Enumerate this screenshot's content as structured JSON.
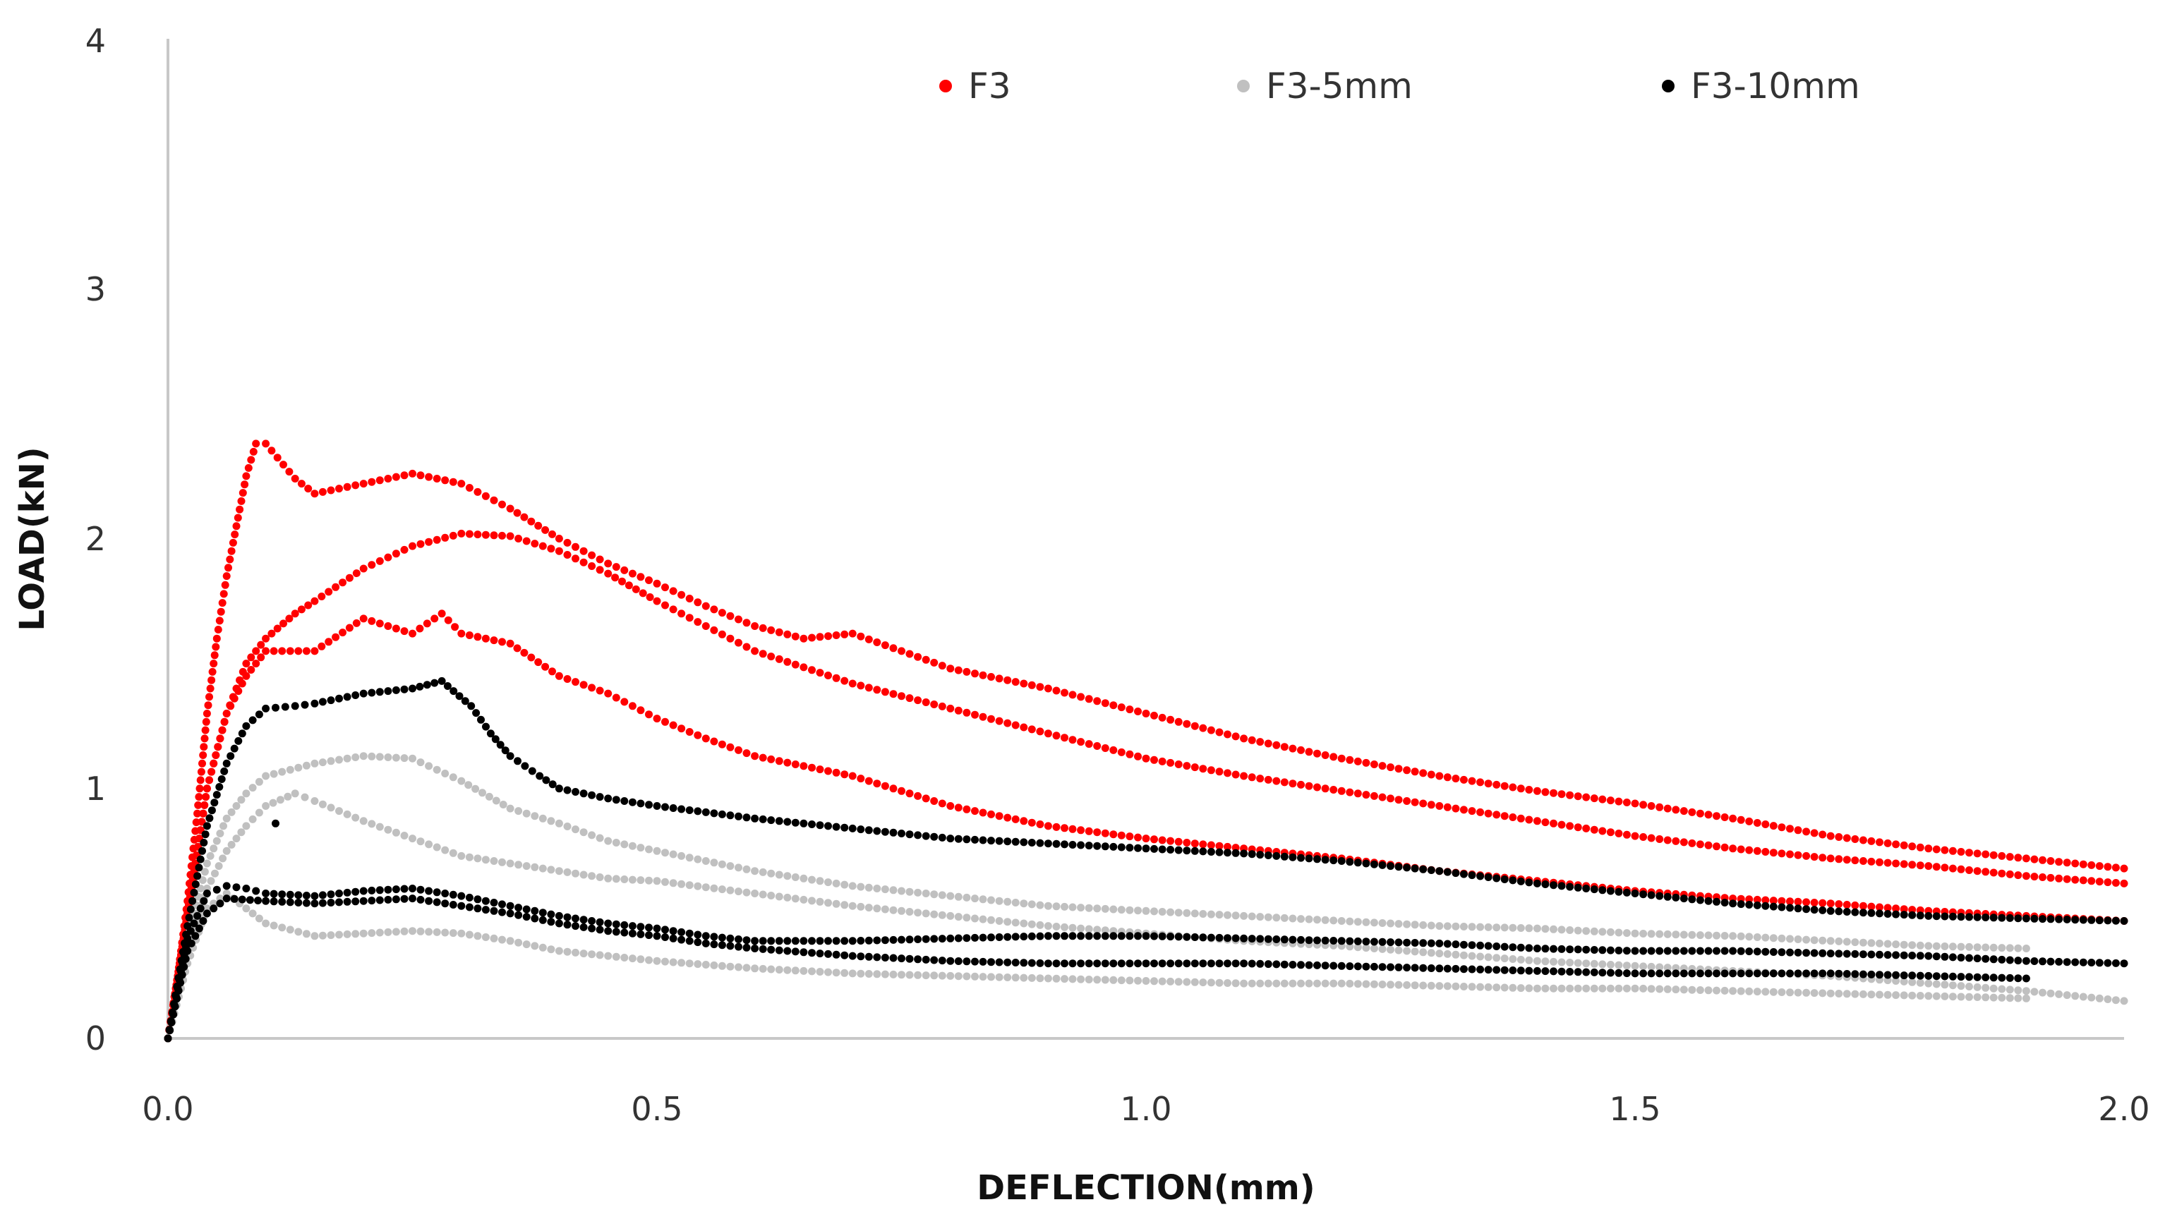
{
  "chart_data": {
    "type": "scatter",
    "title": "",
    "xlabel": "DEFLECTION(mm)",
    "ylabel": "LOAD(kN)",
    "xlim": [
      0,
      2.0
    ],
    "ylim": [
      0,
      4
    ],
    "x_ticks": [
      "0.0",
      "0.5",
      "1.0",
      "1.5",
      "2.0"
    ],
    "y_ticks": [
      "0",
      "1",
      "2",
      "3",
      "4"
    ],
    "grid": false,
    "legend_position": "top-right",
    "series": [
      {
        "name": "F3",
        "color": "#ff0000",
        "curves": [
          [
            [
              0,
              0
            ],
            [
              0.01,
              0.25
            ],
            [
              0.02,
              0.55
            ],
            [
              0.03,
              0.9
            ],
            [
              0.04,
              1.3
            ],
            [
              0.05,
              1.6
            ],
            [
              0.06,
              1.85
            ],
            [
              0.07,
              2.05
            ],
            [
              0.08,
              2.25
            ],
            [
              0.09,
              2.38
            ],
            [
              0.1,
              2.38
            ],
            [
              0.13,
              2.24
            ],
            [
              0.15,
              2.18
            ],
            [
              0.2,
              2.22
            ],
            [
              0.25,
              2.26
            ],
            [
              0.3,
              2.22
            ],
            [
              0.35,
              2.12
            ],
            [
              0.4,
              2.0
            ],
            [
              0.45,
              1.9
            ],
            [
              0.5,
              1.82
            ],
            [
              0.55,
              1.73
            ],
            [
              0.6,
              1.65
            ],
            [
              0.65,
              1.6
            ],
            [
              0.7,
              1.62
            ],
            [
              0.75,
              1.55
            ],
            [
              0.8,
              1.48
            ],
            [
              0.9,
              1.4
            ],
            [
              1.0,
              1.3
            ],
            [
              1.1,
              1.2
            ],
            [
              1.2,
              1.12
            ],
            [
              1.3,
              1.05
            ],
            [
              1.4,
              0.99
            ],
            [
              1.5,
              0.94
            ],
            [
              1.6,
              0.88
            ],
            [
              1.7,
              0.81
            ],
            [
              1.8,
              0.76
            ],
            [
              1.9,
              0.72
            ],
            [
              2.0,
              0.68
            ]
          ],
          [
            [
              0,
              0
            ],
            [
              0.02,
              0.5
            ],
            [
              0.04,
              1.0
            ],
            [
              0.06,
              1.3
            ],
            [
              0.08,
              1.5
            ],
            [
              0.1,
              1.6
            ],
            [
              0.13,
              1.7
            ],
            [
              0.15,
              1.75
            ],
            [
              0.2,
              1.88
            ],
            [
              0.25,
              1.97
            ],
            [
              0.3,
              2.02
            ],
            [
              0.35,
              2.01
            ],
            [
              0.4,
              1.95
            ],
            [
              0.45,
              1.86
            ],
            [
              0.5,
              1.75
            ],
            [
              0.55,
              1.65
            ],
            [
              0.6,
              1.55
            ],
            [
              0.7,
              1.42
            ],
            [
              0.8,
              1.32
            ],
            [
              0.9,
              1.22
            ],
            [
              1.0,
              1.12
            ],
            [
              1.1,
              1.05
            ],
            [
              1.2,
              0.99
            ],
            [
              1.3,
              0.93
            ],
            [
              1.4,
              0.87
            ],
            [
              1.5,
              0.81
            ],
            [
              1.6,
              0.76
            ],
            [
              1.7,
              0.72
            ],
            [
              1.8,
              0.69
            ],
            [
              1.9,
              0.65
            ],
            [
              2.0,
              0.62
            ]
          ],
          [
            [
              0,
              0
            ],
            [
              0.02,
              0.5
            ],
            [
              0.04,
              1.0
            ],
            [
              0.06,
              1.3
            ],
            [
              0.08,
              1.45
            ],
            [
              0.1,
              1.55
            ],
            [
              0.15,
              1.55
            ],
            [
              0.2,
              1.68
            ],
            [
              0.25,
              1.62
            ],
            [
              0.28,
              1.7
            ],
            [
              0.3,
              1.62
            ],
            [
              0.35,
              1.58
            ],
            [
              0.4,
              1.45
            ],
            [
              0.45,
              1.38
            ],
            [
              0.5,
              1.28
            ],
            [
              0.55,
              1.2
            ],
            [
              0.6,
              1.13
            ],
            [
              0.7,
              1.05
            ],
            [
              0.8,
              0.93
            ],
            [
              0.9,
              0.85
            ],
            [
              1.0,
              0.8
            ],
            [
              1.1,
              0.76
            ],
            [
              1.2,
              0.72
            ],
            [
              1.3,
              0.67
            ],
            [
              1.4,
              0.63
            ],
            [
              1.5,
              0.59
            ],
            [
              1.6,
              0.56
            ],
            [
              1.7,
              0.54
            ],
            [
              1.8,
              0.51
            ],
            [
              1.9,
              0.49
            ],
            [
              2.0,
              0.47
            ]
          ]
        ]
      },
      {
        "name": "F3-5mm",
        "color": "#c0c0c0",
        "curves": [
          [
            [
              0,
              0
            ],
            [
              0.02,
              0.4
            ],
            [
              0.04,
              0.7
            ],
            [
              0.06,
              0.88
            ],
            [
              0.08,
              0.98
            ],
            [
              0.1,
              1.05
            ],
            [
              0.15,
              1.1
            ],
            [
              0.2,
              1.13
            ],
            [
              0.25,
              1.12
            ],
            [
              0.3,
              1.03
            ],
            [
              0.35,
              0.92
            ],
            [
              0.4,
              0.86
            ],
            [
              0.45,
              0.79
            ],
            [
              0.5,
              0.75
            ],
            [
              0.55,
              0.71
            ],
            [
              0.6,
              0.67
            ],
            [
              0.7,
              0.61
            ],
            [
              0.8,
              0.57
            ],
            [
              0.9,
              0.53
            ],
            [
              1.0,
              0.51
            ],
            [
              1.1,
              0.49
            ],
            [
              1.2,
              0.47
            ],
            [
              1.3,
              0.45
            ],
            [
              1.4,
              0.44
            ],
            [
              1.5,
              0.42
            ],
            [
              1.6,
              0.41
            ],
            [
              1.7,
              0.39
            ],
            [
              1.8,
              0.37
            ],
            [
              1.9,
              0.36
            ]
          ],
          [
            [
              0,
              0
            ],
            [
              0.02,
              0.35
            ],
            [
              0.04,
              0.6
            ],
            [
              0.06,
              0.75
            ],
            [
              0.08,
              0.85
            ],
            [
              0.1,
              0.93
            ],
            [
              0.13,
              0.98
            ],
            [
              0.15,
              0.95
            ],
            [
              0.2,
              0.87
            ],
            [
              0.25,
              0.8
            ],
            [
              0.3,
              0.73
            ],
            [
              0.35,
              0.7
            ],
            [
              0.4,
              0.67
            ],
            [
              0.45,
              0.64
            ],
            [
              0.5,
              0.63
            ],
            [
              0.6,
              0.58
            ],
            [
              0.7,
              0.53
            ],
            [
              0.8,
              0.49
            ],
            [
              0.9,
              0.45
            ],
            [
              1.0,
              0.42
            ],
            [
              1.1,
              0.39
            ],
            [
              1.2,
              0.37
            ],
            [
              1.3,
              0.34
            ],
            [
              1.4,
              0.31
            ],
            [
              1.5,
              0.29
            ],
            [
              1.6,
              0.27
            ],
            [
              1.7,
              0.25
            ],
            [
              1.8,
              0.22
            ],
            [
              1.9,
              0.19
            ],
            [
              2.0,
              0.15
            ]
          ],
          [
            [
              0,
              0
            ],
            [
              0.02,
              0.3
            ],
            [
              0.04,
              0.52
            ],
            [
              0.06,
              0.58
            ],
            [
              0.08,
              0.52
            ],
            [
              0.1,
              0.46
            ],
            [
              0.15,
              0.41
            ],
            [
              0.2,
              0.42
            ],
            [
              0.25,
              0.43
            ],
            [
              0.3,
              0.42
            ],
            [
              0.35,
              0.39
            ],
            [
              0.4,
              0.35
            ],
            [
              0.5,
              0.31
            ],
            [
              0.6,
              0.28
            ],
            [
              0.7,
              0.26
            ],
            [
              0.8,
              0.25
            ],
            [
              0.9,
              0.24
            ],
            [
              1.0,
              0.23
            ],
            [
              1.1,
              0.22
            ],
            [
              1.2,
              0.22
            ],
            [
              1.3,
              0.21
            ],
            [
              1.4,
              0.2
            ],
            [
              1.5,
              0.2
            ],
            [
              1.6,
              0.19
            ],
            [
              1.7,
              0.18
            ],
            [
              1.8,
              0.17
            ],
            [
              1.9,
              0.16
            ]
          ]
        ]
      },
      {
        "name": "F3-10mm",
        "color": "#000000",
        "curves": [
          [
            [
              0,
              0
            ],
            [
              0.02,
              0.45
            ],
            [
              0.04,
              0.85
            ],
            [
              0.06,
              1.1
            ],
            [
              0.08,
              1.25
            ],
            [
              0.1,
              1.32
            ],
            [
              0.13,
              1.33
            ],
            [
              0.15,
              1.34
            ],
            [
              0.2,
              1.38
            ],
            [
              0.25,
              1.4
            ],
            [
              0.28,
              1.43
            ],
            [
              0.31,
              1.33
            ],
            [
              0.33,
              1.22
            ],
            [
              0.35,
              1.13
            ],
            [
              0.38,
              1.05
            ],
            [
              0.4,
              1.0
            ],
            [
              0.45,
              0.96
            ],
            [
              0.5,
              0.93
            ],
            [
              0.6,
              0.88
            ],
            [
              0.7,
              0.84
            ],
            [
              0.8,
              0.8
            ],
            [
              0.9,
              0.78
            ],
            [
              1.0,
              0.76
            ],
            [
              1.1,
              0.74
            ],
            [
              1.2,
              0.71
            ],
            [
              1.3,
              0.67
            ],
            [
              1.4,
              0.62
            ],
            [
              1.5,
              0.58
            ],
            [
              1.6,
              0.54
            ],
            [
              1.7,
              0.51
            ],
            [
              1.8,
              0.49
            ],
            [
              1.9,
              0.48
            ],
            [
              2.0,
              0.47
            ]
          ],
          [
            [
              0,
              0
            ],
            [
              0.02,
              0.4
            ],
            [
              0.04,
              0.58
            ],
            [
              0.06,
              0.61
            ],
            [
              0.08,
              0.6
            ],
            [
              0.1,
              0.58
            ],
            [
              0.15,
              0.57
            ],
            [
              0.2,
              0.59
            ],
            [
              0.25,
              0.6
            ],
            [
              0.3,
              0.57
            ],
            [
              0.35,
              0.53
            ],
            [
              0.4,
              0.49
            ],
            [
              0.45,
              0.46
            ],
            [
              0.5,
              0.44
            ],
            [
              0.55,
              0.41
            ],
            [
              0.6,
              0.39
            ],
            [
              0.7,
              0.39
            ],
            [
              0.8,
              0.4
            ],
            [
              0.9,
              0.41
            ],
            [
              1.0,
              0.41
            ],
            [
              1.1,
              0.4
            ],
            [
              1.2,
              0.39
            ],
            [
              1.3,
              0.38
            ],
            [
              1.4,
              0.36
            ],
            [
              1.5,
              0.35
            ],
            [
              1.6,
              0.35
            ],
            [
              1.7,
              0.34
            ],
            [
              1.8,
              0.33
            ],
            [
              1.9,
              0.31
            ],
            [
              2.0,
              0.3
            ]
          ],
          [
            [
              0,
              0
            ],
            [
              0.02,
              0.35
            ],
            [
              0.04,
              0.5
            ],
            [
              0.06,
              0.56
            ],
            [
              0.1,
              0.55
            ],
            [
              0.15,
              0.54
            ],
            [
              0.2,
              0.55
            ],
            [
              0.25,
              0.56
            ],
            [
              0.3,
              0.53
            ],
            [
              0.35,
              0.5
            ],
            [
              0.4,
              0.46
            ],
            [
              0.45,
              0.43
            ],
            [
              0.5,
              0.41
            ],
            [
              0.55,
              0.38
            ],
            [
              0.6,
              0.36
            ],
            [
              0.7,
              0.33
            ],
            [
              0.8,
              0.31
            ],
            [
              0.9,
              0.3
            ],
            [
              1.0,
              0.3
            ],
            [
              1.1,
              0.3
            ],
            [
              1.2,
              0.29
            ],
            [
              1.3,
              0.28
            ],
            [
              1.4,
              0.27
            ],
            [
              1.5,
              0.26
            ],
            [
              1.6,
              0.26
            ],
            [
              1.7,
              0.26
            ],
            [
              1.8,
              0.25
            ],
            [
              1.9,
              0.24
            ]
          ]
        ],
        "extra_points": [
          [
            0.11,
            0.86
          ]
        ]
      }
    ]
  }
}
